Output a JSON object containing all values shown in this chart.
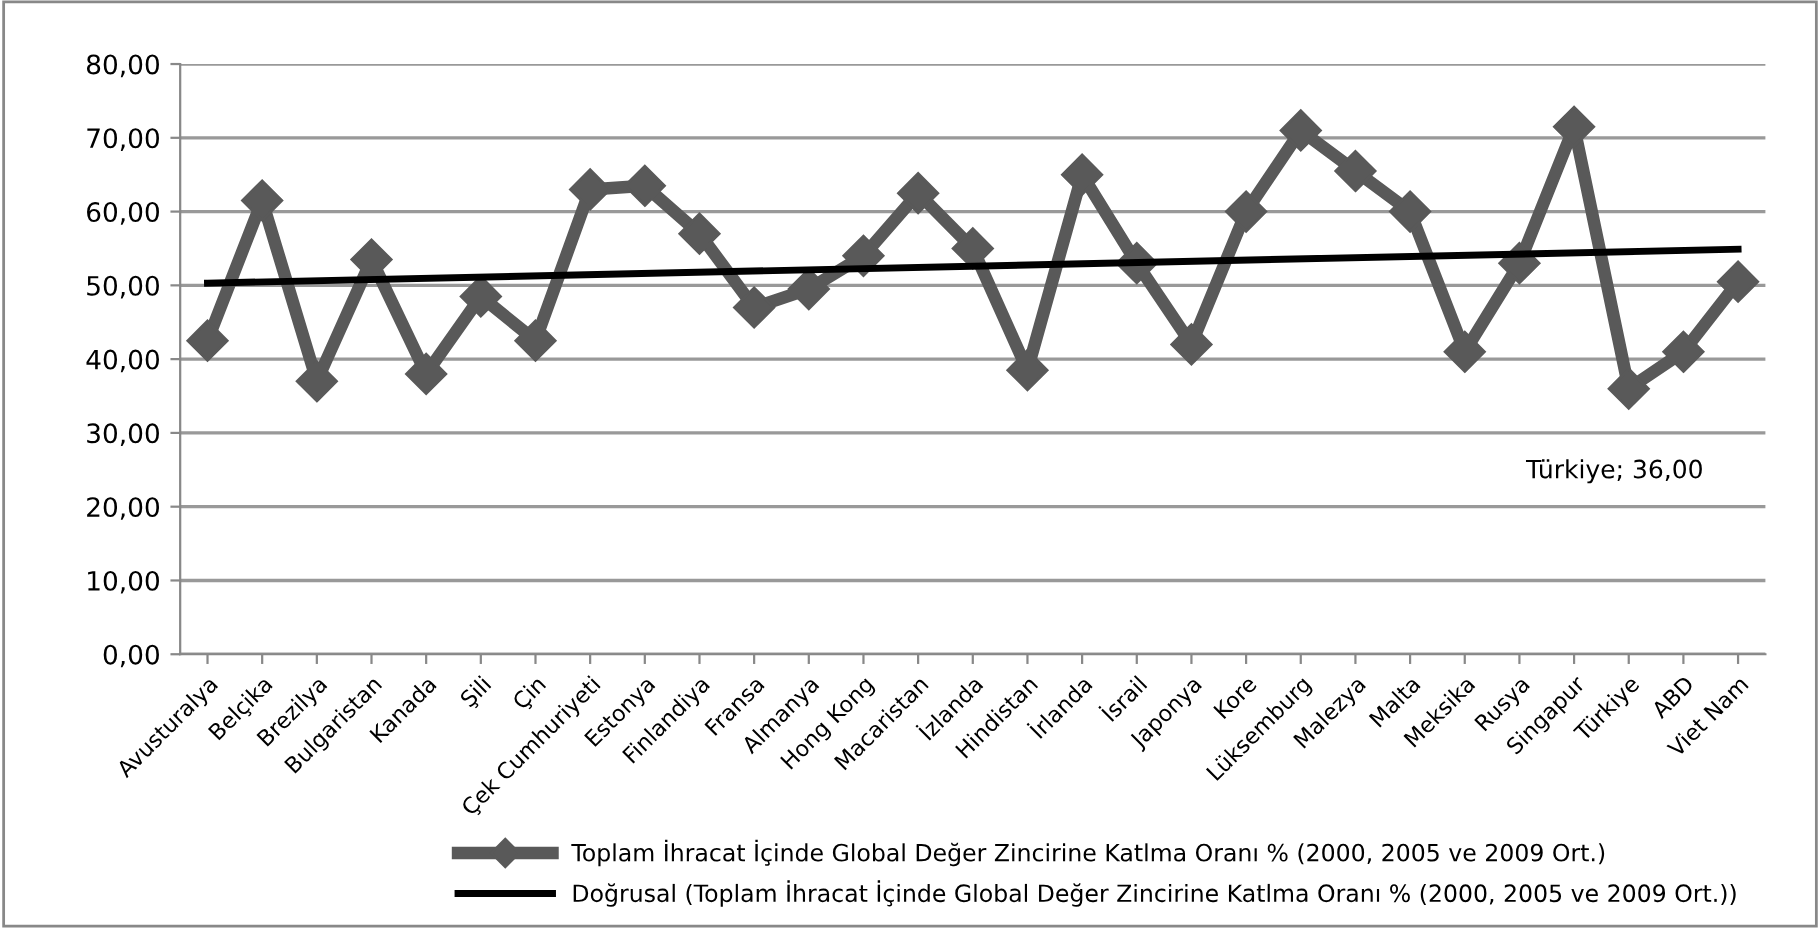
{
  "chart_data": {
    "type": "line",
    "categories": [
      "Avusturalya",
      "Belçika",
      "Brezilya",
      "Bulgaristan",
      "Kanada",
      "Şili",
      "Çin",
      "Çek Cumhuriyeti",
      "Estonya",
      "Finlandiya",
      "Fransa",
      "Almanya",
      "Hong Kong",
      "Macaristan",
      "İzlanda",
      "Hindistan",
      "İrlanda",
      "İsrail",
      "Japonya",
      "Kore",
      "Lüksemburg",
      "Malezya",
      "Malta",
      "Meksika",
      "Rusya",
      "Singapur",
      "Türkiye",
      "ABD",
      "Viet Nam"
    ],
    "series": [
      {
        "name": "Toplam İhracat İçinde Global Değer Zincirine Katlma Oranı % (2000, 2005 ve 2009 Ort.)",
        "color": "#595959",
        "marker": "diamond",
        "values": [
          42.5,
          61.5,
          37,
          53.5,
          38,
          48.5,
          42.5,
          63,
          63.5,
          57,
          47,
          49.5,
          54,
          62.5,
          55,
          38.5,
          65,
          53,
          42,
          60,
          71,
          65.5,
          60,
          41,
          53,
          71.5,
          36,
          41,
          50.5
        ]
      },
      {
        "name": "Doğrusal (Toplam İhracat İçinde Global Değer Zincirine Katlma Oranı % (2000, 2005 ve 2009 Ort.))",
        "color": "#000000",
        "type": "line",
        "marker": "none",
        "x": [
          "Avusturalya",
          "Viet Nam"
        ],
        "values": [
          50.3,
          54.9
        ]
      }
    ],
    "ylim": [
      0,
      80
    ],
    "yticks": [
      {
        "value": 0,
        "label": "0,00"
      },
      {
        "value": 10,
        "label": "10,00"
      },
      {
        "value": 20,
        "label": "20,00"
      },
      {
        "value": 30,
        "label": "30,00"
      },
      {
        "value": 40,
        "label": "40,00"
      },
      {
        "value": 50,
        "label": "50,00"
      },
      {
        "value": 60,
        "label": "60,00"
      },
      {
        "value": 70,
        "label": "70,00"
      },
      {
        "value": 80,
        "label": "80,00"
      }
    ],
    "grid": "y",
    "legend": "bottom",
    "annotations": [
      "Türkiye; 36,00"
    ]
  }
}
